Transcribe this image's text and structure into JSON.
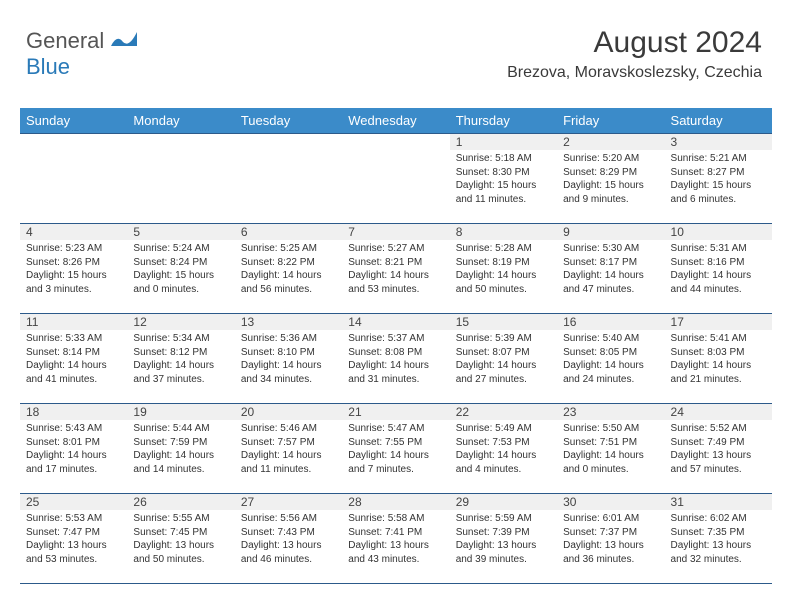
{
  "logo": {
    "text1": "General",
    "text2": "Blue",
    "color1": "#555555",
    "color2": "#2a7ab8"
  },
  "header": {
    "title": "August 2024",
    "location": "Brezova, Moravskoslezsky, Czechia"
  },
  "theme": {
    "headerBg": "#3b8bc9",
    "headerText": "#ffffff",
    "border": "#2c5a8a",
    "dayBg": "#f0f0f0"
  },
  "weekdays": [
    "Sunday",
    "Monday",
    "Tuesday",
    "Wednesday",
    "Thursday",
    "Friday",
    "Saturday"
  ],
  "weeks": [
    [
      {
        "empty": true
      },
      {
        "empty": true
      },
      {
        "empty": true
      },
      {
        "empty": true
      },
      {
        "day": "1",
        "sunrise": "Sunrise: 5:18 AM",
        "sunset": "Sunset: 8:30 PM",
        "daylight": "Daylight: 15 hours and 11 minutes."
      },
      {
        "day": "2",
        "sunrise": "Sunrise: 5:20 AM",
        "sunset": "Sunset: 8:29 PM",
        "daylight": "Daylight: 15 hours and 9 minutes."
      },
      {
        "day": "3",
        "sunrise": "Sunrise: 5:21 AM",
        "sunset": "Sunset: 8:27 PM",
        "daylight": "Daylight: 15 hours and 6 minutes."
      }
    ],
    [
      {
        "day": "4",
        "sunrise": "Sunrise: 5:23 AM",
        "sunset": "Sunset: 8:26 PM",
        "daylight": "Daylight: 15 hours and 3 minutes."
      },
      {
        "day": "5",
        "sunrise": "Sunrise: 5:24 AM",
        "sunset": "Sunset: 8:24 PM",
        "daylight": "Daylight: 15 hours and 0 minutes."
      },
      {
        "day": "6",
        "sunrise": "Sunrise: 5:25 AM",
        "sunset": "Sunset: 8:22 PM",
        "daylight": "Daylight: 14 hours and 56 minutes."
      },
      {
        "day": "7",
        "sunrise": "Sunrise: 5:27 AM",
        "sunset": "Sunset: 8:21 PM",
        "daylight": "Daylight: 14 hours and 53 minutes."
      },
      {
        "day": "8",
        "sunrise": "Sunrise: 5:28 AM",
        "sunset": "Sunset: 8:19 PM",
        "daylight": "Daylight: 14 hours and 50 minutes."
      },
      {
        "day": "9",
        "sunrise": "Sunrise: 5:30 AM",
        "sunset": "Sunset: 8:17 PM",
        "daylight": "Daylight: 14 hours and 47 minutes."
      },
      {
        "day": "10",
        "sunrise": "Sunrise: 5:31 AM",
        "sunset": "Sunset: 8:16 PM",
        "daylight": "Daylight: 14 hours and 44 minutes."
      }
    ],
    [
      {
        "day": "11",
        "sunrise": "Sunrise: 5:33 AM",
        "sunset": "Sunset: 8:14 PM",
        "daylight": "Daylight: 14 hours and 41 minutes."
      },
      {
        "day": "12",
        "sunrise": "Sunrise: 5:34 AM",
        "sunset": "Sunset: 8:12 PM",
        "daylight": "Daylight: 14 hours and 37 minutes."
      },
      {
        "day": "13",
        "sunrise": "Sunrise: 5:36 AM",
        "sunset": "Sunset: 8:10 PM",
        "daylight": "Daylight: 14 hours and 34 minutes."
      },
      {
        "day": "14",
        "sunrise": "Sunrise: 5:37 AM",
        "sunset": "Sunset: 8:08 PM",
        "daylight": "Daylight: 14 hours and 31 minutes."
      },
      {
        "day": "15",
        "sunrise": "Sunrise: 5:39 AM",
        "sunset": "Sunset: 8:07 PM",
        "daylight": "Daylight: 14 hours and 27 minutes."
      },
      {
        "day": "16",
        "sunrise": "Sunrise: 5:40 AM",
        "sunset": "Sunset: 8:05 PM",
        "daylight": "Daylight: 14 hours and 24 minutes."
      },
      {
        "day": "17",
        "sunrise": "Sunrise: 5:41 AM",
        "sunset": "Sunset: 8:03 PM",
        "daylight": "Daylight: 14 hours and 21 minutes."
      }
    ],
    [
      {
        "day": "18",
        "sunrise": "Sunrise: 5:43 AM",
        "sunset": "Sunset: 8:01 PM",
        "daylight": "Daylight: 14 hours and 17 minutes."
      },
      {
        "day": "19",
        "sunrise": "Sunrise: 5:44 AM",
        "sunset": "Sunset: 7:59 PM",
        "daylight": "Daylight: 14 hours and 14 minutes."
      },
      {
        "day": "20",
        "sunrise": "Sunrise: 5:46 AM",
        "sunset": "Sunset: 7:57 PM",
        "daylight": "Daylight: 14 hours and 11 minutes."
      },
      {
        "day": "21",
        "sunrise": "Sunrise: 5:47 AM",
        "sunset": "Sunset: 7:55 PM",
        "daylight": "Daylight: 14 hours and 7 minutes."
      },
      {
        "day": "22",
        "sunrise": "Sunrise: 5:49 AM",
        "sunset": "Sunset: 7:53 PM",
        "daylight": "Daylight: 14 hours and 4 minutes."
      },
      {
        "day": "23",
        "sunrise": "Sunrise: 5:50 AM",
        "sunset": "Sunset: 7:51 PM",
        "daylight": "Daylight: 14 hours and 0 minutes."
      },
      {
        "day": "24",
        "sunrise": "Sunrise: 5:52 AM",
        "sunset": "Sunset: 7:49 PM",
        "daylight": "Daylight: 13 hours and 57 minutes."
      }
    ],
    [
      {
        "day": "25",
        "sunrise": "Sunrise: 5:53 AM",
        "sunset": "Sunset: 7:47 PM",
        "daylight": "Daylight: 13 hours and 53 minutes."
      },
      {
        "day": "26",
        "sunrise": "Sunrise: 5:55 AM",
        "sunset": "Sunset: 7:45 PM",
        "daylight": "Daylight: 13 hours and 50 minutes."
      },
      {
        "day": "27",
        "sunrise": "Sunrise: 5:56 AM",
        "sunset": "Sunset: 7:43 PM",
        "daylight": "Daylight: 13 hours and 46 minutes."
      },
      {
        "day": "28",
        "sunrise": "Sunrise: 5:58 AM",
        "sunset": "Sunset: 7:41 PM",
        "daylight": "Daylight: 13 hours and 43 minutes."
      },
      {
        "day": "29",
        "sunrise": "Sunrise: 5:59 AM",
        "sunset": "Sunset: 7:39 PM",
        "daylight": "Daylight: 13 hours and 39 minutes."
      },
      {
        "day": "30",
        "sunrise": "Sunrise: 6:01 AM",
        "sunset": "Sunset: 7:37 PM",
        "daylight": "Daylight: 13 hours and 36 minutes."
      },
      {
        "day": "31",
        "sunrise": "Sunrise: 6:02 AM",
        "sunset": "Sunset: 7:35 PM",
        "daylight": "Daylight: 13 hours and 32 minutes."
      }
    ]
  ]
}
